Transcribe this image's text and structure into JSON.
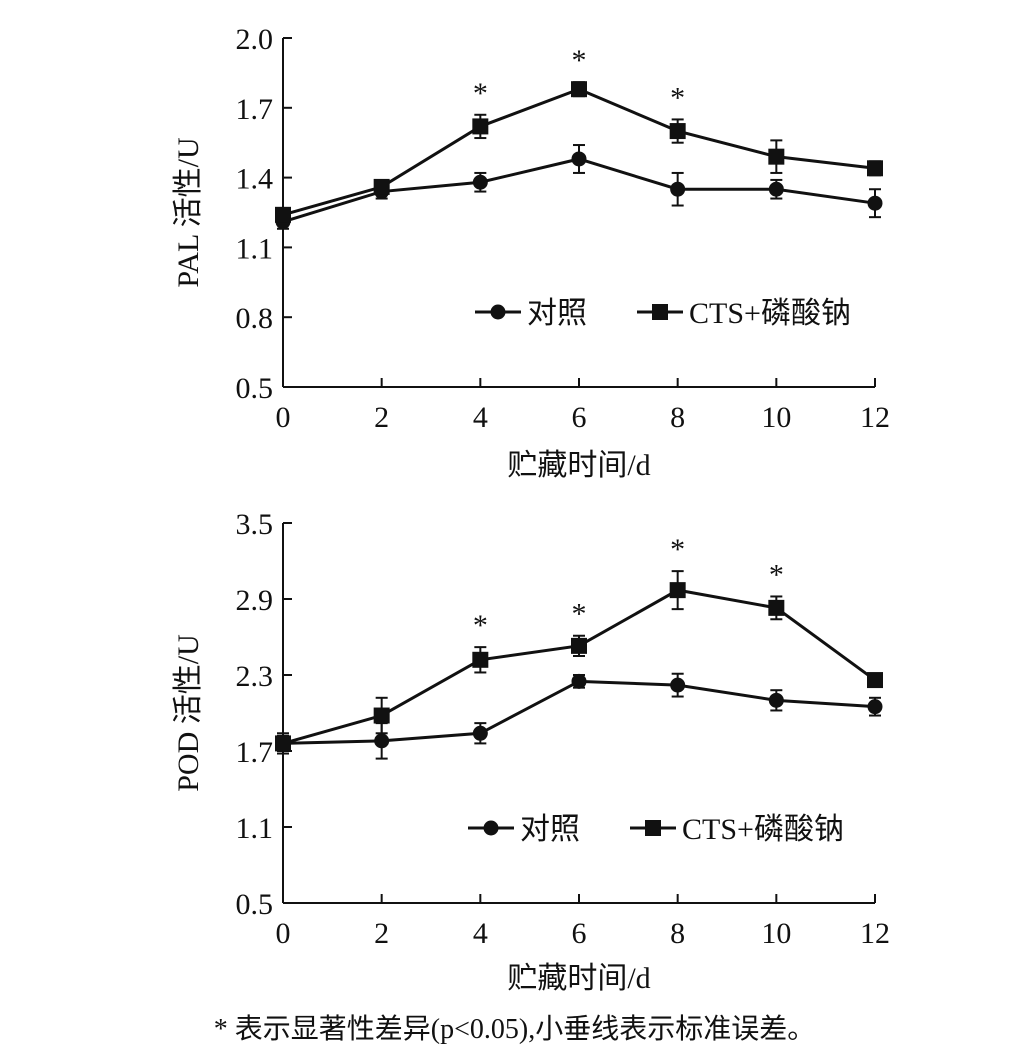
{
  "chart_data": [
    {
      "type": "line",
      "xlabel": "贮藏时间/d",
      "ylabel": "PAL 活性/U",
      "xlim": [
        0,
        12
      ],
      "ylim": [
        0.5,
        2.0
      ],
      "xticks": [
        "0",
        "2",
        "4",
        "6",
        "8",
        "10",
        "12"
      ],
      "yticks": [
        "0.5",
        "0.8",
        "1.1",
        "1.4",
        "1.7",
        "2.0"
      ],
      "x": [
        0,
        2,
        4,
        6,
        8,
        10,
        12
      ],
      "series": [
        {
          "name": "对照",
          "marker": "circle",
          "values": [
            1.21,
            1.34,
            1.38,
            1.48,
            1.35,
            1.35,
            1.29
          ],
          "errors": [
            0.03,
            0.03,
            0.04,
            0.06,
            0.07,
            0.04,
            0.06
          ]
        },
        {
          "name": "CTS+磷酸钠",
          "marker": "square",
          "values": [
            1.24,
            1.36,
            1.62,
            1.78,
            1.6,
            1.49,
            1.44
          ],
          "errors": [
            0.02,
            0.02,
            0.05,
            0.03,
            0.05,
            0.07,
            0.03
          ]
        }
      ],
      "significance": [
        {
          "x": 4,
          "label": "*"
        },
        {
          "x": 6,
          "label": "*"
        },
        {
          "x": 8,
          "label": "*"
        }
      ],
      "legend": "center-right"
    },
    {
      "type": "line",
      "xlabel": "贮藏时间/d",
      "ylabel": "POD 活性/U",
      "xlim": [
        0,
        12
      ],
      "ylim": [
        0.5,
        3.5
      ],
      "xticks": [
        "0",
        "2",
        "4",
        "6",
        "8",
        "10",
        "12"
      ],
      "yticks": [
        "0.5",
        "1.1",
        "1.7",
        "2.3",
        "2.9",
        "3.5"
      ],
      "x": [
        0,
        2,
        4,
        6,
        8,
        10,
        12
      ],
      "series": [
        {
          "name": "对照",
          "marker": "circle",
          "values": [
            1.76,
            1.78,
            1.84,
            2.25,
            2.22,
            2.1,
            2.05
          ],
          "errors": [
            0.08,
            0.14,
            0.08,
            0.05,
            0.09,
            0.08,
            0.07
          ]
        },
        {
          "name": "CTS+磷酸钠",
          "marker": "square",
          "values": [
            1.76,
            1.98,
            2.42,
            2.53,
            2.97,
            2.83,
            2.26
          ],
          "errors": [
            0.06,
            0.14,
            0.1,
            0.08,
            0.15,
            0.09,
            0.05
          ]
        }
      ],
      "significance": [
        {
          "x": 4,
          "label": "*"
        },
        {
          "x": 6,
          "label": "*"
        },
        {
          "x": 8,
          "label": "*"
        },
        {
          "x": 10,
          "label": "*"
        }
      ],
      "legend": "lower-right"
    }
  ],
  "footnote": {
    "star": "*",
    "text": "表示显著性差异(p<0.05),小垂线表示标准误差。"
  }
}
